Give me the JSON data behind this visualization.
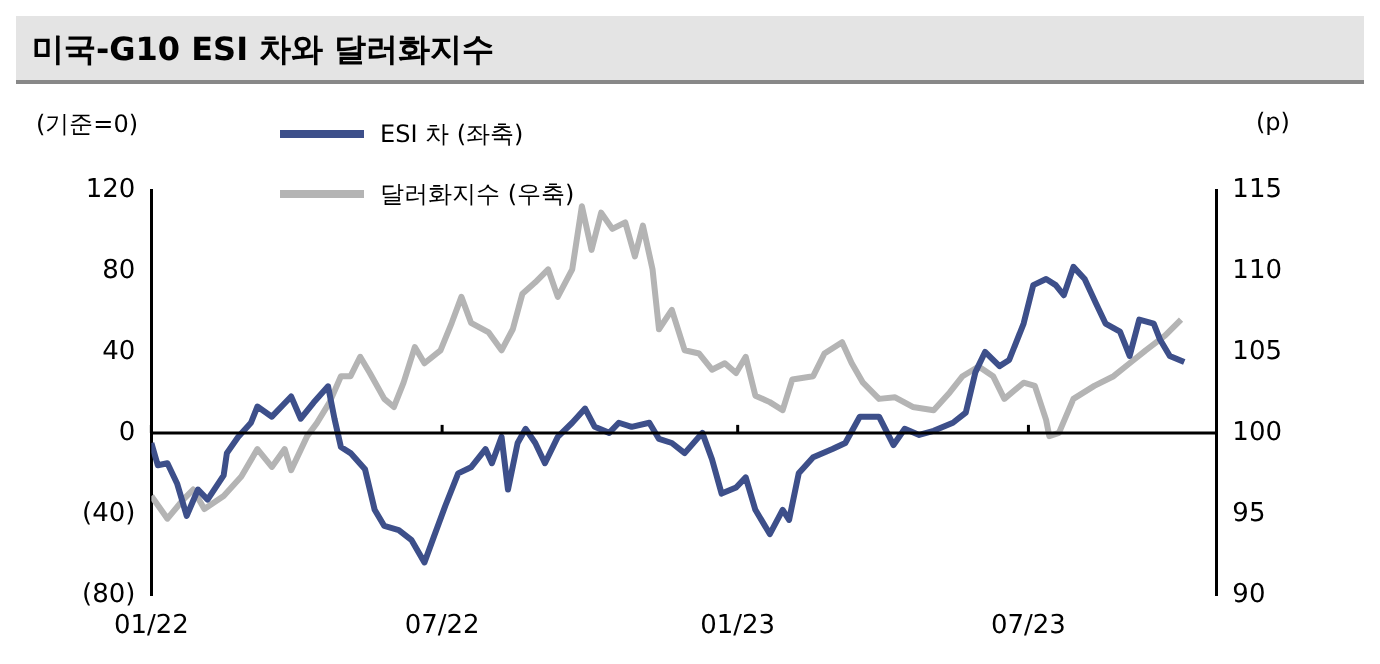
{
  "chart_data": {
    "type": "line",
    "title": "미국-G10 ESI 차와 달러화지수",
    "ylabel": "(기준=0)",
    "y2label": "(p)",
    "legend": "top",
    "marker": "none",
    "line_style": "solid",
    "grid": false,
    "xlim": [
      "2022-01-01",
      "2023-10-26"
    ],
    "xticks": [
      {
        "value": "2022-01-01",
        "label": "01/22"
      },
      {
        "value": "2022-07-01",
        "label": "07/22"
      },
      {
        "value": "2023-01-01",
        "label": "01/23"
      },
      {
        "value": "2023-07-01",
        "label": "07/23"
      }
    ],
    "ylim": [
      -80,
      120
    ],
    "yticks": [
      {
        "value": -80,
        "label": "(80)"
      },
      {
        "value": -40,
        "label": "(40)"
      },
      0,
      40,
      80,
      120
    ],
    "y2lim": [
      90,
      115
    ],
    "y2ticks": [
      90,
      95,
      100,
      105,
      110,
      115
    ],
    "ref_lines": [
      {
        "axis": "y",
        "value": 0,
        "color": "#000000"
      }
    ],
    "series": [
      {
        "name": "ESI 차 (좌축)",
        "color": "#3d4f8a",
        "x": [
          "2022-01-01",
          "2022-01-05",
          "2022-01-11",
          "2022-01-17",
          "2022-01-23",
          "2022-01-30",
          "2022-02-05",
          "2022-02-15",
          "2022-02-17",
          "2022-02-24",
          "2022-03-04",
          "2022-03-08",
          "2022-03-17",
          "2022-03-29",
          "2022-04-04",
          "2022-04-12",
          "2022-04-21",
          "2022-04-25",
          "2022-04-29",
          "2022-05-05",
          "2022-05-14",
          "2022-05-20",
          "2022-05-26",
          "2022-06-04",
          "2022-06-12",
          "2022-06-20",
          "2022-06-26",
          "2022-07-03",
          "2022-07-11",
          "2022-07-19",
          "2022-07-28",
          "2022-08-01",
          "2022-08-07",
          "2022-08-11",
          "2022-08-17",
          "2022-08-22",
          "2022-08-28",
          "2022-09-03",
          "2022-09-11",
          "2022-09-20",
          "2022-09-28",
          "2022-10-04",
          "2022-10-13",
          "2022-10-19",
          "2022-10-27",
          "2022-11-07",
          "2022-11-13",
          "2022-11-21",
          "2022-11-29",
          "2022-12-10",
          "2022-12-16",
          "2022-12-22",
          "2022-12-31",
          "2023-01-06",
          "2023-01-12",
          "2023-01-21",
          "2023-01-29",
          "2023-02-02",
          "2023-02-08",
          "2023-02-17",
          "2023-03-01",
          "2023-03-09",
          "2023-03-18",
          "2023-03-30",
          "2023-04-08",
          "2023-04-15",
          "2023-04-24",
          "2023-05-03",
          "2023-05-15",
          "2023-05-23",
          "2023-05-29",
          "2023-06-04",
          "2023-06-13",
          "2023-06-19",
          "2023-06-28",
          "2023-07-04",
          "2023-07-12",
          "2023-07-18",
          "2023-07-23",
          "2023-07-29",
          "2023-08-05",
          "2023-08-12",
          "2023-08-18",
          "2023-08-27",
          "2023-09-02",
          "2023-09-08",
          "2023-09-17",
          "2023-09-21",
          "2023-09-27",
          "2023-10-06"
        ],
        "values": [
          -5,
          -16,
          -15,
          -25,
          -41,
          -28,
          -33,
          -21,
          -10,
          -2,
          5,
          13,
          8,
          18,
          7,
          15,
          23,
          7,
          -7,
          -10,
          -18,
          -38,
          -46,
          -48,
          -53,
          -64,
          -51,
          -36,
          -20,
          -17,
          -8,
          -15,
          -2,
          -28,
          -5,
          2,
          -5,
          -15,
          -2,
          5,
          12,
          3,
          0,
          5,
          3,
          5,
          -3,
          -5,
          -10,
          0,
          -13,
          -30,
          -27,
          -22,
          -38,
          -50,
          -38,
          -43,
          -20,
          -12,
          -8,
          -5,
          8,
          8,
          -6,
          2,
          -1,
          1,
          5,
          10,
          30,
          40,
          33,
          36,
          54,
          73,
          76,
          73,
          68,
          82,
          76,
          64,
          54,
          50,
          38,
          56,
          54,
          46,
          38,
          35
        ]
      },
      {
        "name": "달러화지수 (우축)",
        "color": "#b4b4b4",
        "axis": "y2",
        "x": [
          "2022-01-01",
          "2022-01-11",
          "2022-01-21",
          "2022-01-27",
          "2022-02-03",
          "2022-02-15",
          "2022-02-26",
          "2022-03-08",
          "2022-03-17",
          "2022-03-25",
          "2022-03-29",
          "2022-04-08",
          "2022-04-14",
          "2022-04-22",
          "2022-04-29",
          "2022-05-05",
          "2022-05-11",
          "2022-05-17",
          "2022-05-26",
          "2022-06-01",
          "2022-06-07",
          "2022-06-14",
          "2022-06-20",
          "2022-06-30",
          "2022-07-07",
          "2022-07-13",
          "2022-07-19",
          "2022-07-30",
          "2022-08-07",
          "2022-08-14",
          "2022-08-20",
          "2022-08-28",
          "2022-09-05",
          "2022-09-11",
          "2022-09-20",
          "2022-09-26",
          "2022-10-02",
          "2022-10-08",
          "2022-10-15",
          "2022-10-23",
          "2022-10-29",
          "2022-11-03",
          "2022-11-09",
          "2022-11-13",
          "2022-11-21",
          "2022-11-29",
          "2022-12-08",
          "2022-12-16",
          "2022-12-24",
          "2022-12-31",
          "2023-01-06",
          "2023-01-12",
          "2023-01-21",
          "2023-01-29",
          "2023-02-04",
          "2023-02-17",
          "2023-02-24",
          "2023-03-07",
          "2023-03-13",
          "2023-03-20",
          "2023-03-30",
          "2023-04-09",
          "2023-04-20",
          "2023-05-03",
          "2023-05-13",
          "2023-05-21",
          "2023-05-31",
          "2023-06-09",
          "2023-06-16",
          "2023-06-28",
          "2023-07-05",
          "2023-07-12",
          "2023-07-14",
          "2023-07-20",
          "2023-07-29",
          "2023-08-11",
          "2023-08-23",
          "2023-09-02",
          "2023-09-12",
          "2023-09-24",
          "2023-10-04"
        ],
        "values": [
          96.1,
          94.7,
          95.9,
          96.5,
          95.3,
          96.1,
          97.3,
          99.0,
          97.9,
          99.0,
          97.7,
          99.8,
          100.6,
          101.9,
          103.5,
          103.5,
          104.7,
          103.7,
          102.1,
          101.6,
          103.1,
          105.3,
          104.3,
          105.1,
          106.8,
          108.4,
          106.8,
          106.2,
          105.1,
          106.4,
          108.6,
          109.3,
          110.1,
          108.4,
          110.1,
          114.0,
          111.3,
          113.6,
          112.6,
          113.0,
          110.9,
          112.8,
          110.1,
          106.4,
          107.6,
          105.1,
          104.9,
          103.9,
          104.3,
          103.7,
          104.7,
          102.3,
          101.9,
          101.4,
          103.3,
          103.5,
          104.9,
          105.6,
          104.3,
          103.1,
          102.1,
          102.2,
          101.6,
          101.4,
          102.5,
          103.5,
          104.1,
          103.5,
          102.1,
          103.1,
          102.9,
          100.8,
          99.8,
          100.0,
          102.1,
          102.9,
          103.5,
          104.3,
          105.1,
          106.0,
          107.0
        ]
      }
    ]
  }
}
